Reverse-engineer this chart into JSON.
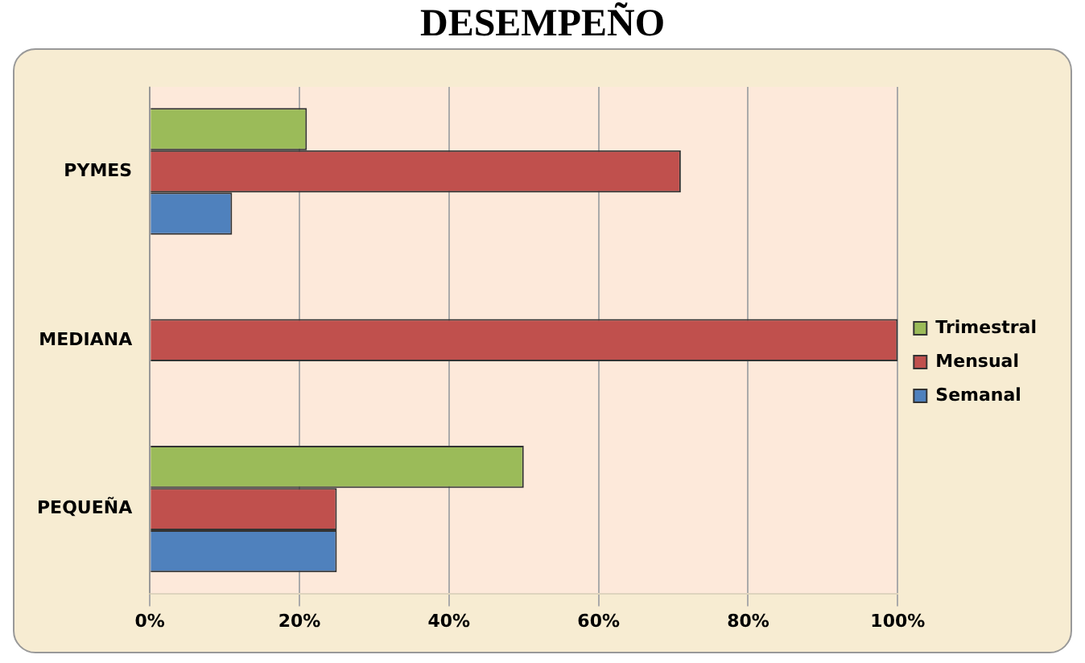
{
  "chart_data": {
    "type": "bar",
    "orientation": "horizontal",
    "title": "DESEMPEÑO",
    "categories": [
      "PYMES",
      "MEDIANA",
      "PEQUEÑA"
    ],
    "series": [
      {
        "name": "Trimestral",
        "color": "#9bbb59",
        "values": [
          21,
          0,
          50
        ]
      },
      {
        "name": "Mensual",
        "color": "#c0504d",
        "values": [
          71,
          100,
          25
        ]
      },
      {
        "name": "Semanal",
        "color": "#4f81bd",
        "values": [
          11,
          0,
          25
        ]
      }
    ],
    "xlim": [
      0,
      100
    ],
    "xticks": [
      {
        "value": 0,
        "label": "0%"
      },
      {
        "value": 20,
        "label": "20%"
      },
      {
        "value": 40,
        "label": "40%"
      },
      {
        "value": 60,
        "label": "60%"
      },
      {
        "value": 80,
        "label": "80%"
      },
      {
        "value": 100,
        "label": "100%"
      }
    ],
    "grid": "x",
    "legend": "right"
  }
}
